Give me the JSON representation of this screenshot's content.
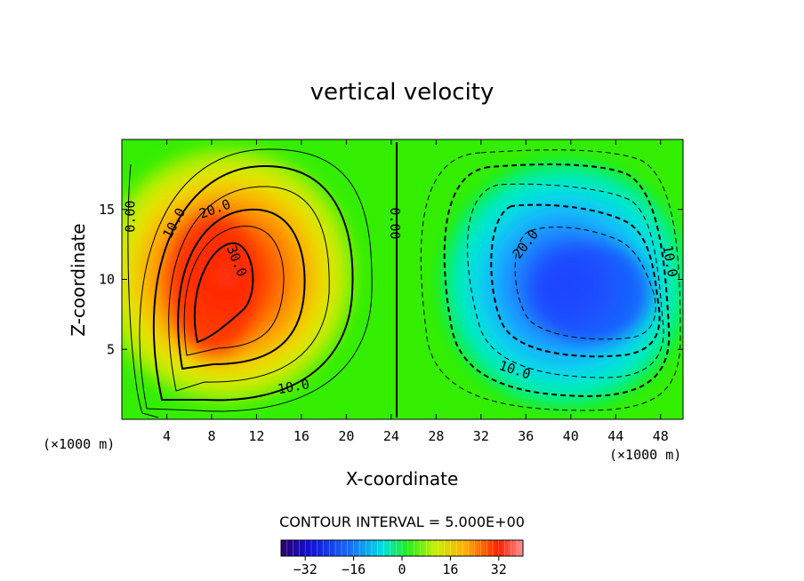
{
  "chart_data": {
    "type": "contour",
    "title": "vertical velocity",
    "xlabel": "X-coordinate",
    "ylabel": "Z-coordinate",
    "xunit": "(×1000 m)",
    "zunit": "(×1000 m)",
    "xlim": [
      0,
      50
    ],
    "ylim": [
      0,
      20
    ],
    "xticks": [
      4,
      8,
      12,
      16,
      20,
      24,
      28,
      32,
      36,
      40,
      44,
      48
    ],
    "yticks": [
      5,
      10,
      15
    ],
    "contour_interval_text": "CONTOUR INTERVAL = 5.000E+00",
    "contour_interval": 5,
    "fields": [
      {
        "name": "updraft",
        "center_x": 9,
        "center_z": 9.5,
        "peak": 35
      },
      {
        "name": "downdraft",
        "center_x": 40,
        "center_z": 10,
        "peak": -30
      }
    ],
    "contour_labels": [
      {
        "text": "0.00",
        "x": 0.8,
        "z": 14.5
      },
      {
        "text": "10.0",
        "x": 4.7,
        "z": 14.0
      },
      {
        "text": "20.0",
        "x": 8.3,
        "z": 15.0
      },
      {
        "text": "30.0",
        "x": 10.2,
        "z": 11.3
      },
      {
        "text": "10.0",
        "x": 15.3,
        "z": 2.3
      },
      {
        "text": "0.00",
        "x": 24.3,
        "z": 14.0
      },
      {
        "text": "20.0",
        "x": 36.0,
        "z": 12.5
      },
      {
        "text": "10.0",
        "x": 35.0,
        "z": 3.5
      },
      {
        "text": "10.0",
        "x": 48.8,
        "z": 11.3
      }
    ],
    "colorbar": {
      "ticks": [
        "−32",
        "−16",
        "0",
        "16",
        "32"
      ],
      "tick_values": [
        -32,
        -16,
        0,
        16,
        32
      ],
      "range": [
        -40,
        40
      ]
    }
  }
}
